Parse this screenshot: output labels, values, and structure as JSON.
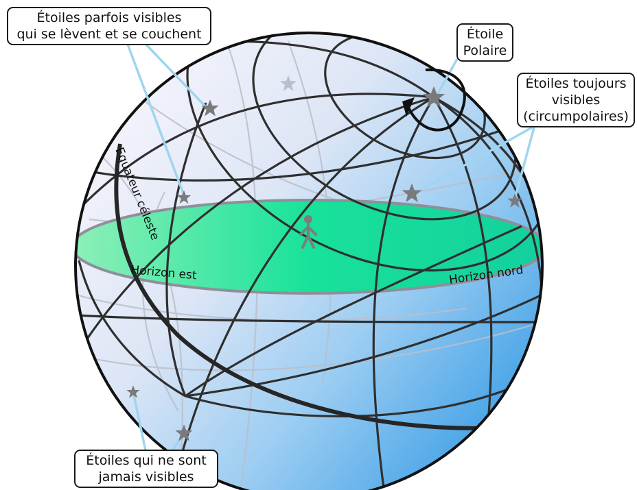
{
  "labels": {
    "sometimes_visible": [
      "Étoiles parfois visibles",
      "qui se lèvent et se couchent"
    ],
    "polaris": [
      "Étoile",
      "Polaire"
    ],
    "always_visible": [
      "Étoiles toujours",
      "visibles",
      "(circumpolaires)"
    ],
    "never_visible": [
      "Étoiles qui ne sont",
      "jamais visibles"
    ],
    "celestial_equator": "Equateur céleste",
    "horizon_east": "Horizon est",
    "horizon_north": "Horizon nord"
  },
  "colors": {
    "sphere_light": "#eef0fa",
    "sphere_dark": "#4aa8ea",
    "horizon_plane": "#1fe49a",
    "grid_line": "#2f2f2f",
    "leader_line": "#9fd5f0",
    "star": "#7a7a7a",
    "observer": "#7d7d7d"
  },
  "icons": [
    "star-icon",
    "observer-icon",
    "rotation-arrow-icon"
  ]
}
